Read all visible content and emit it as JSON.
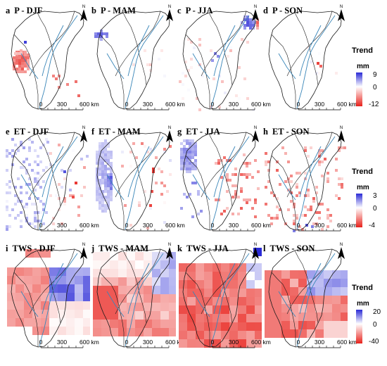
{
  "figure": {
    "panels": [
      {
        "id": "a",
        "letter": "a",
        "title": "P - DJF",
        "row": 0,
        "col": 0,
        "pattern": "p_djf"
      },
      {
        "id": "b",
        "letter": "b",
        "title": "P - MAM",
        "row": 0,
        "col": 1,
        "pattern": "p_mam"
      },
      {
        "id": "c",
        "letter": "c",
        "title": "P - JJA",
        "row": 0,
        "col": 2,
        "pattern": "p_jja"
      },
      {
        "id": "d",
        "letter": "d",
        "title": "P - SON",
        "row": 0,
        "col": 3,
        "pattern": "p_son"
      },
      {
        "id": "e",
        "letter": "e",
        "title": "ET - DJF",
        "row": 1,
        "col": 0,
        "pattern": "et_djf"
      },
      {
        "id": "f",
        "letter": "f",
        "title": "ET - MAM",
        "row": 1,
        "col": 1,
        "pattern": "et_mam"
      },
      {
        "id": "g",
        "letter": "g",
        "title": "ET - JJA",
        "row": 1,
        "col": 2,
        "pattern": "et_jja"
      },
      {
        "id": "h",
        "letter": "h",
        "title": "ET - SON",
        "row": 1,
        "col": 3,
        "pattern": "et_son"
      },
      {
        "id": "i",
        "letter": "i",
        "title": "TWS - DJF",
        "row": 2,
        "col": 0,
        "pattern": "tws_djf"
      },
      {
        "id": "j",
        "letter": "j",
        "title": "TWS - MAM",
        "row": 2,
        "col": 1,
        "pattern": "tws_mam"
      },
      {
        "id": "k",
        "letter": "k",
        "title": "TWS - JJA",
        "row": 2,
        "col": 2,
        "pattern": "tws_jja"
      },
      {
        "id": "l",
        "letter": "l",
        "title": "TWS - SON",
        "row": 2,
        "col": 3,
        "pattern": "tws_son"
      }
    ],
    "scalebar": {
      "labels": [
        "0",
        "300",
        "600 km"
      ]
    },
    "north": "N",
    "legends": [
      {
        "row": 0,
        "title": "Trend",
        "unit": "mm",
        "max": "9",
        "mid": "0",
        "min": "-12"
      },
      {
        "row": 1,
        "title": "Trend",
        "unit": "mm",
        "max": "3",
        "mid": "0",
        "min": "-4"
      },
      {
        "row": 2,
        "title": "Trend",
        "unit": "mm",
        "max": "20",
        "mid": "0",
        "min": "-40"
      }
    ],
    "colors": {
      "positive": "#2b2bd6",
      "zero": "#ffffff",
      "negative": "#e8221c",
      "outline": "#1a1a1a",
      "river": "#3a86b8"
    }
  }
}
